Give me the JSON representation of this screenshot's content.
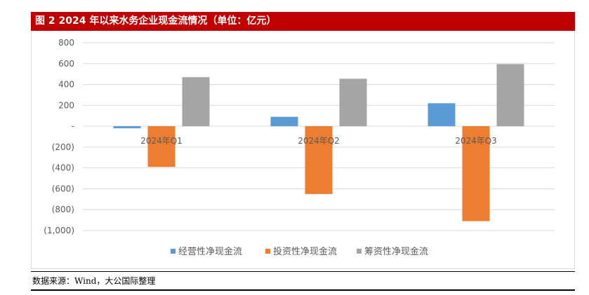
{
  "header": {
    "title": "图 2   2024 年以来水务企业现金流情况（单位：亿元）"
  },
  "source": {
    "text": "数据来源：Wind，大公国际整理"
  },
  "colors": {
    "title_bg": "#c00000",
    "series": [
      "#5b9bd5",
      "#ed7d31",
      "#a5a5a5"
    ]
  },
  "chart_data": {
    "type": "bar",
    "title": "",
    "xlabel": "",
    "ylabel": "",
    "categories": [
      "2024年Q1",
      "2024年Q2",
      "2024年Q3"
    ],
    "series": [
      {
        "name": "经营性净现金流",
        "values": [
          -20,
          90,
          220
        ]
      },
      {
        "name": "投资性净现金流",
        "values": [
          -390,
          -650,
          -910
        ]
      },
      {
        "name": "筹资性净现金流",
        "values": [
          470,
          455,
          595
        ]
      }
    ],
    "ylim": [
      -1000,
      800
    ],
    "yticks": [
      800,
      600,
      400,
      200,
      0,
      -200,
      -400,
      -600,
      -800,
      -1000
    ],
    "ytick_labels": [
      "800",
      "600",
      "400",
      "200",
      "-",
      "(200)",
      "(400)",
      "(600)",
      "(800)",
      "(1,000)"
    ],
    "grid": true,
    "legend_position": "bottom"
  }
}
